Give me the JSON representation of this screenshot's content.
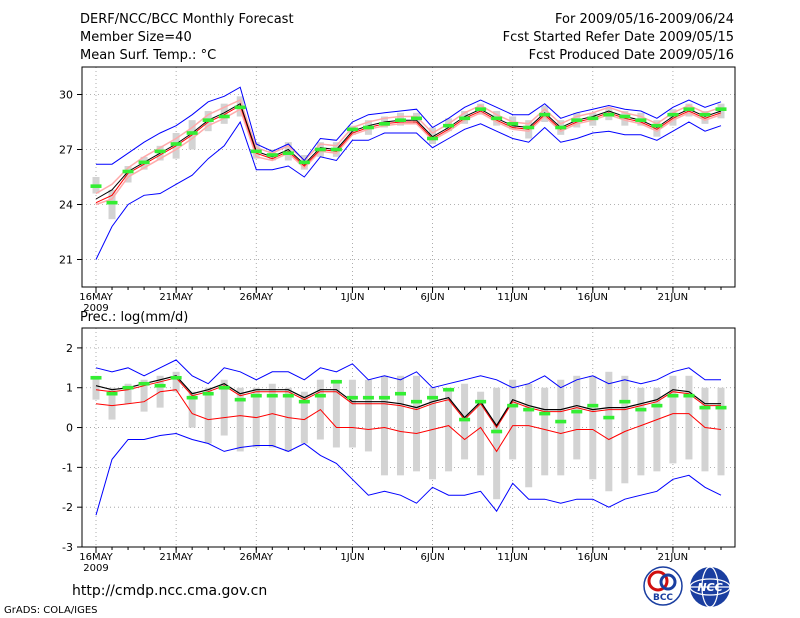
{
  "header": {
    "title": "DERF/NCC/BCC Monthly Forecast",
    "member_size": "Member Size=40",
    "variable": "Mean Surf. Temp.: °C",
    "period": "For 2009/05/16-2009/06/24",
    "fcst_started": "Fcst Started Refer Date 2009/05/15",
    "fcst_produced": "Fcst Produced Date 2009/05/16"
  },
  "footer": {
    "url": "http://cmdp.ncc.cma.gov.cn",
    "grads": "GrADS: COLA/IGES",
    "logo_bcc": "BCC",
    "logo_ncc": "NCC"
  },
  "colors": {
    "mean": "#000000",
    "upper": "#0000ff",
    "lower": "#0000ff",
    "median": "#ff0000",
    "obs": "#33ee33",
    "box": "#d3d3d3",
    "spread": "#ffaaaa"
  },
  "chart_data": [
    {
      "type": "line",
      "title": "Mean Surf. Temp.: °C",
      "ylim": [
        19.5,
        31.5
      ],
      "yticks": [
        "21",
        "24",
        "27",
        "30"
      ],
      "ytick_values": [
        21,
        24,
        27,
        30
      ],
      "xlabels": [
        "16MAY",
        "21MAY",
        "26MAY",
        "1JUN",
        "6JUN",
        "11JUN",
        "16JUN",
        "21JUN"
      ],
      "xlabel_day_index": [
        0,
        5,
        10,
        16,
        21,
        26,
        31,
        36
      ],
      "year_label": "2009",
      "days": 40,
      "series": [
        {
          "name": "ensemble-max",
          "values": [
            26.2,
            26.2,
            26.8,
            27.4,
            27.9,
            28.3,
            28.9,
            29.6,
            29.9,
            30.4,
            27.3,
            26.9,
            27.3,
            26.4,
            27.6,
            27.5,
            28.5,
            28.9,
            29.0,
            29.1,
            29.2,
            28.2,
            28.7,
            29.3,
            29.7,
            29.3,
            28.9,
            28.9,
            29.5,
            28.7,
            29.0,
            29.2,
            29.4,
            29.2,
            29.1,
            28.7,
            29.3,
            29.7,
            29.3,
            29.6
          ]
        },
        {
          "name": "ensemble-min",
          "values": [
            21.0,
            22.8,
            24.0,
            24.5,
            24.6,
            25.1,
            25.6,
            26.5,
            27.2,
            28.5,
            25.9,
            25.9,
            26.1,
            25.5,
            26.6,
            26.4,
            27.5,
            27.5,
            27.9,
            27.9,
            27.9,
            27.1,
            27.6,
            28.1,
            28.4,
            28.0,
            27.6,
            27.4,
            28.2,
            27.4,
            27.6,
            27.9,
            28.0,
            27.8,
            27.8,
            27.5,
            28.0,
            28.5,
            28.0,
            28.3
          ]
        },
        {
          "name": "ensemble-mean",
          "values": [
            24.3,
            24.8,
            25.8,
            26.3,
            26.8,
            27.3,
            27.9,
            28.6,
            29.0,
            29.5,
            26.9,
            26.6,
            27.0,
            26.2,
            27.1,
            27.0,
            28.0,
            28.3,
            28.5,
            28.6,
            28.6,
            27.7,
            28.2,
            28.8,
            29.2,
            28.7,
            28.3,
            28.2,
            29.0,
            28.2,
            28.6,
            28.8,
            29.1,
            28.8,
            28.6,
            28.2,
            28.8,
            29.2,
            28.8,
            29.1
          ]
        },
        {
          "name": "ensemble-median",
          "values": [
            24.1,
            24.5,
            25.7,
            26.2,
            26.7,
            27.2,
            27.8,
            28.5,
            28.9,
            29.4,
            26.8,
            26.5,
            26.9,
            26.1,
            27.0,
            26.9,
            27.9,
            28.2,
            28.4,
            28.5,
            28.5,
            27.6,
            28.1,
            28.7,
            29.1,
            28.6,
            28.2,
            28.1,
            28.9,
            28.1,
            28.5,
            28.7,
            29.0,
            28.7,
            28.5,
            28.1,
            28.7,
            29.1,
            28.7,
            29.0
          ]
        },
        {
          "name": "ensemble-p25",
          "values": [
            24.0,
            24.3,
            25.5,
            26.0,
            26.5,
            27.0,
            27.6,
            28.3,
            28.7,
            29.2,
            26.6,
            26.4,
            26.8,
            26.0,
            26.9,
            26.8,
            27.8,
            28.1,
            28.3,
            28.4,
            28.4,
            27.5,
            28.0,
            28.6,
            29.0,
            28.5,
            28.1,
            28.0,
            28.8,
            28.0,
            28.4,
            28.6,
            28.9,
            28.6,
            28.4,
            28.0,
            28.6,
            29.0,
            28.6,
            28.9
          ]
        },
        {
          "name": "ensemble-p75",
          "values": [
            24.6,
            25.1,
            26.0,
            26.6,
            27.1,
            27.6,
            28.2,
            28.9,
            29.3,
            29.7,
            27.1,
            26.8,
            27.2,
            26.4,
            27.3,
            27.2,
            28.2,
            28.5,
            28.7,
            28.8,
            28.8,
            27.9,
            28.4,
            29.0,
            29.4,
            28.9,
            28.5,
            28.4,
            29.2,
            28.4,
            28.8,
            29.0,
            29.3,
            29.0,
            28.8,
            28.4,
            29.0,
            29.4,
            29.0,
            29.3
          ]
        },
        {
          "name": "observed-box-low",
          "values": [
            24.6,
            23.2,
            25.2,
            25.9,
            26.4,
            26.5,
            27.0,
            28.0,
            28.4,
            28.8,
            26.5,
            26.4,
            26.4,
            25.9,
            26.6,
            26.6,
            27.8,
            27.8,
            28.2,
            28.3,
            28.4,
            27.3,
            28.0,
            28.4,
            28.9,
            28.3,
            28.1,
            27.6,
            28.5,
            27.8,
            28.2,
            28.3,
            28.6,
            28.3,
            28.3,
            27.7,
            28.3,
            28.8,
            28.4,
            28.7
          ]
        },
        {
          "name": "observed-box-high",
          "values": [
            25.5,
            24.8,
            26.1,
            26.6,
            27.2,
            27.9,
            28.6,
            29.1,
            29.5,
            29.9,
            27.4,
            27.0,
            27.4,
            26.7,
            27.4,
            27.4,
            28.3,
            28.6,
            28.8,
            29.0,
            29.0,
            28.2,
            28.7,
            29.1,
            29.5,
            29.1,
            28.8,
            28.6,
            29.4,
            28.6,
            29.0,
            29.0,
            29.3,
            29.1,
            29.0,
            28.6,
            29.2,
            29.5,
            29.1,
            29.5
          ]
        },
        {
          "name": "observed",
          "values": [
            25.0,
            24.1,
            25.8,
            26.3,
            26.9,
            27.3,
            27.9,
            28.6,
            28.8,
            29.3,
            26.9,
            26.7,
            26.8,
            26.3,
            27.0,
            27.0,
            28.1,
            28.2,
            28.4,
            28.6,
            28.7,
            27.6,
            28.3,
            28.7,
            29.2,
            28.7,
            28.4,
            28.2,
            28.9,
            28.2,
            28.6,
            28.7,
            28.9,
            28.8,
            28.6,
            28.3,
            28.9,
            29.2,
            28.9,
            29.2
          ]
        }
      ]
    },
    {
      "type": "line",
      "title": "Prec.: log(mm/d)",
      "ylim": [
        -3,
        2.5
      ],
      "yticks": [
        "-3",
        "-2",
        "-1",
        "0",
        "1",
        "2"
      ],
      "ytick_values": [
        -3,
        -2,
        -1,
        0,
        1,
        2
      ],
      "xlabels": [
        "16MAY",
        "21MAY",
        "26MAY",
        "1JUN",
        "6JUN",
        "11JUN",
        "16JUN",
        "21JUN"
      ],
      "xlabel_day_index": [
        0,
        5,
        10,
        16,
        21,
        26,
        31,
        36
      ],
      "year_label": "2009",
      "days": 40,
      "series": [
        {
          "name": "ensemble-max",
          "values": [
            1.5,
            1.4,
            1.5,
            1.3,
            1.5,
            1.7,
            1.3,
            1.1,
            1.5,
            1.4,
            1.2,
            1.4,
            1.4,
            1.2,
            1.5,
            1.4,
            1.6,
            1.2,
            1.3,
            1.2,
            1.4,
            1.0,
            1.1,
            1.2,
            1.3,
            1.2,
            1.0,
            1.1,
            1.3,
            1.0,
            1.2,
            1.3,
            1.1,
            1.2,
            1.1,
            1.2,
            1.4,
            1.5,
            1.2,
            1.2
          ]
        },
        {
          "name": "ensemble-min",
          "values": [
            -2.2,
            -0.8,
            -0.3,
            -0.3,
            -0.2,
            -0.15,
            -0.3,
            -0.4,
            -0.6,
            -0.5,
            -0.45,
            -0.45,
            -0.6,
            -0.4,
            -0.7,
            -0.9,
            -1.3,
            -1.7,
            -1.6,
            -1.7,
            -1.9,
            -1.5,
            -1.7,
            -1.7,
            -1.6,
            -2.1,
            -1.4,
            -1.8,
            -1.8,
            -1.9,
            -1.8,
            -1.8,
            -2.0,
            -1.8,
            -1.7,
            -1.6,
            -1.3,
            -1.2,
            -1.5,
            -1.7
          ]
        },
        {
          "name": "ensemble-mean",
          "values": [
            1.05,
            0.95,
            1.0,
            1.1,
            1.2,
            1.3,
            0.85,
            0.95,
            1.1,
            0.85,
            0.95,
            0.95,
            0.95,
            0.75,
            0.95,
            0.95,
            0.65,
            0.65,
            0.65,
            0.6,
            0.5,
            0.65,
            0.75,
            0.25,
            0.65,
            0.05,
            0.7,
            0.55,
            0.45,
            0.45,
            0.55,
            0.45,
            0.5,
            0.5,
            0.6,
            0.7,
            0.95,
            0.9,
            0.6,
            0.6
          ]
        },
        {
          "name": "ensemble-median",
          "values": [
            0.95,
            0.9,
            0.95,
            1.05,
            1.15,
            1.25,
            0.8,
            0.9,
            1.05,
            0.8,
            0.9,
            0.9,
            0.9,
            0.7,
            0.9,
            0.9,
            0.6,
            0.6,
            0.6,
            0.55,
            0.45,
            0.6,
            0.7,
            0.2,
            0.6,
            0.0,
            0.65,
            0.5,
            0.4,
            0.4,
            0.5,
            0.4,
            0.45,
            0.45,
            0.55,
            0.65,
            0.9,
            0.85,
            0.55,
            0.55
          ]
        },
        {
          "name": "ensemble-lower",
          "values": [
            0.6,
            0.55,
            0.6,
            0.65,
            0.9,
            0.95,
            0.35,
            0.2,
            0.25,
            0.3,
            0.25,
            0.35,
            0.25,
            0.2,
            0.45,
            0.0,
            0.0,
            -0.05,
            0.0,
            -0.1,
            -0.15,
            -0.05,
            0.05,
            -0.3,
            0.0,
            -0.6,
            0.05,
            0.05,
            -0.05,
            -0.15,
            -0.05,
            -0.05,
            -0.3,
            -0.1,
            0.05,
            0.2,
            0.35,
            0.35,
            0.0,
            -0.05
          ]
        },
        {
          "name": "observed-box-low",
          "values": [
            0.7,
            0.2,
            0.6,
            0.4,
            0.5,
            0.9,
            0.0,
            -0.4,
            -0.2,
            -0.6,
            -0.5,
            -0.5,
            -0.6,
            -0.4,
            -0.3,
            -0.5,
            -0.5,
            -0.6,
            -1.2,
            -1.2,
            -1.1,
            -1.3,
            -1.1,
            -0.8,
            -1.2,
            -1.8,
            -0.8,
            -1.5,
            -1.2,
            -1.2,
            -0.8,
            -1.3,
            -1.6,
            -1.4,
            -1.2,
            -1.1,
            -0.9,
            -0.8,
            -1.1,
            -1.2
          ]
        },
        {
          "name": "observed-box-high",
          "values": [
            1.3,
            1.0,
            1.1,
            1.2,
            1.3,
            1.4,
            0.9,
            1.0,
            1.2,
            1.0,
            1.0,
            1.1,
            1.0,
            0.9,
            1.2,
            1.2,
            1.2,
            1.2,
            1.3,
            1.3,
            1.3,
            1.0,
            1.0,
            1.1,
            0.9,
            1.0,
            1.2,
            1.1,
            1.0,
            1.2,
            1.3,
            1.3,
            1.4,
            1.3,
            1.0,
            1.0,
            1.3,
            1.3,
            1.0,
            1.0
          ]
        },
        {
          "name": "observed",
          "values": [
            1.25,
            0.85,
            1.0,
            1.1,
            1.05,
            1.25,
            0.75,
            0.85,
            1.0,
            0.7,
            0.8,
            0.8,
            0.8,
            0.65,
            0.8,
            1.15,
            0.75,
            0.75,
            0.75,
            0.85,
            0.65,
            0.75,
            0.95,
            0.2,
            0.65,
            -0.1,
            0.55,
            0.45,
            0.35,
            0.15,
            0.4,
            0.55,
            0.25,
            0.65,
            0.45,
            0.55,
            0.8,
            0.8,
            0.5,
            0.5
          ]
        }
      ]
    }
  ]
}
